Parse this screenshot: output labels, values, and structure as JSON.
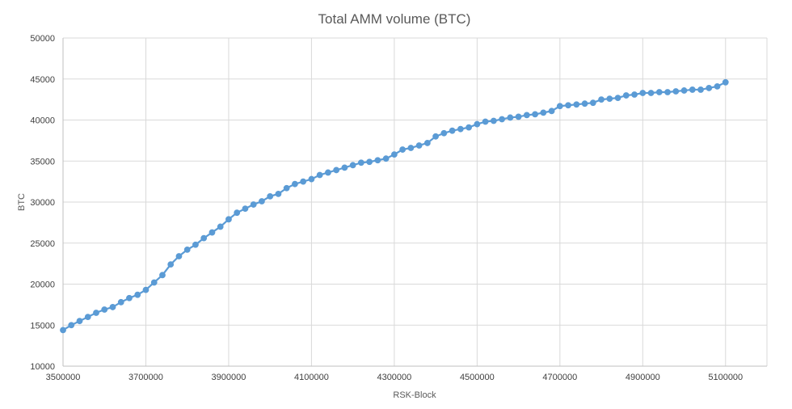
{
  "chart_data": {
    "type": "line",
    "title": "Total AMM volume (BTC)",
    "xlabel": "RSK-Block",
    "ylabel": "BTC",
    "xlim": [
      3500000,
      5200000
    ],
    "ylim": [
      10000,
      50000
    ],
    "x_ticks": [
      "3500000",
      "3700000",
      "3900000",
      "4100000",
      "4300000",
      "4500000",
      "4700000",
      "4900000",
      "5100000"
    ],
    "y_ticks": [
      "10000",
      "15000",
      "20000",
      "25000",
      "30000",
      "35000",
      "40000",
      "45000",
      "50000"
    ],
    "grid": true,
    "legend": "none",
    "series": [
      {
        "color": "#5b9bd5",
        "x": [
          3500000,
          3520000,
          3540000,
          3560000,
          3580000,
          3600000,
          3620000,
          3640000,
          3660000,
          3680000,
          3700000,
          3720000,
          3740000,
          3760000,
          3780000,
          3800000,
          3820000,
          3840000,
          3860000,
          3880000,
          3900000,
          3920000,
          3940000,
          3960000,
          3980000,
          4000000,
          4020000,
          4040000,
          4060000,
          4080000,
          4100000,
          4120000,
          4140000,
          4160000,
          4180000,
          4200000,
          4220000,
          4240000,
          4260000,
          4280000,
          4300000,
          4320000,
          4340000,
          4360000,
          4380000,
          4400000,
          4420000,
          4440000,
          4460000,
          4480000,
          4500000,
          4520000,
          4540000,
          4560000,
          4580000,
          4600000,
          4620000,
          4640000,
          4660000,
          4680000,
          4700000,
          4720000,
          4740000,
          4760000,
          4780000,
          4800000,
          4820000,
          4840000,
          4860000,
          4880000,
          4900000,
          4920000,
          4940000,
          4960000,
          4980000,
          5000000,
          5020000,
          5040000,
          5060000,
          5080000,
          5100000
        ],
        "y": [
          14400,
          15000,
          15500,
          16000,
          16500,
          16900,
          17200,
          17800,
          18300,
          18700,
          19300,
          20200,
          21100,
          22400,
          23400,
          24200,
          24800,
          25600,
          26300,
          27000,
          27900,
          28700,
          29200,
          29700,
          30100,
          30700,
          31000,
          31700,
          32200,
          32500,
          32800,
          33300,
          33600,
          33900,
          34200,
          34500,
          34800,
          34900,
          35100,
          35300,
          35800,
          36400,
          36600,
          36900,
          37200,
          38000,
          38400,
          38700,
          38900,
          39100,
          39500,
          39800,
          39900,
          40100,
          40300,
          40400,
          40600,
          40700,
          40900,
          41100,
          41700,
          41800,
          41900,
          42000,
          42100,
          42500,
          42600,
          42700,
          43000,
          43100,
          43300,
          43300,
          43400,
          43400,
          43500,
          43600,
          43700,
          43700,
          43900,
          44100,
          44600
        ]
      }
    ]
  }
}
